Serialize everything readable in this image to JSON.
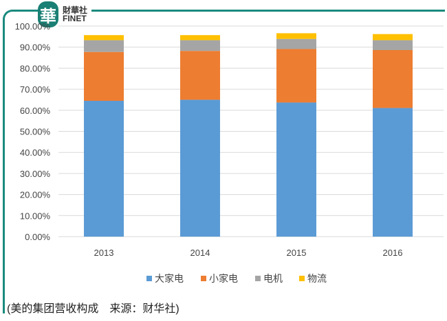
{
  "logo": {
    "mark": "華",
    "name_cn": "財華社",
    "name_en": "FINET"
  },
  "caption": "(美的集团营收构成　来源：财华社)",
  "colors": {
    "大家电": "#5b9bd5",
    "小家电": "#ed7d31",
    "电机": "#a5a5a5",
    "物流": "#ffc000",
    "frame": "#1a8a7e"
  },
  "chart_data": {
    "type": "bar",
    "stacked": true,
    "categories": [
      "2013",
      "2014",
      "2015",
      "2016"
    ],
    "series": [
      {
        "name": "大家电",
        "values": [
          64.5,
          65.0,
          63.7,
          61.1
        ]
      },
      {
        "name": "小家电",
        "values": [
          23.2,
          23.2,
          25.4,
          27.5
        ]
      },
      {
        "name": "电机",
        "values": [
          5.6,
          5.1,
          4.8,
          4.7
        ]
      },
      {
        "name": "物流",
        "values": [
          2.4,
          2.4,
          2.7,
          2.9
        ]
      }
    ],
    "yticks": [
      "0.00%",
      "10.00%",
      "20.00%",
      "30.00%",
      "40.00%",
      "50.00%",
      "60.00%",
      "70.00%",
      "80.00%",
      "90.00%",
      "100.00%"
    ],
    "ylim": [
      0,
      100
    ],
    "grid": true,
    "legend": "bottom"
  }
}
